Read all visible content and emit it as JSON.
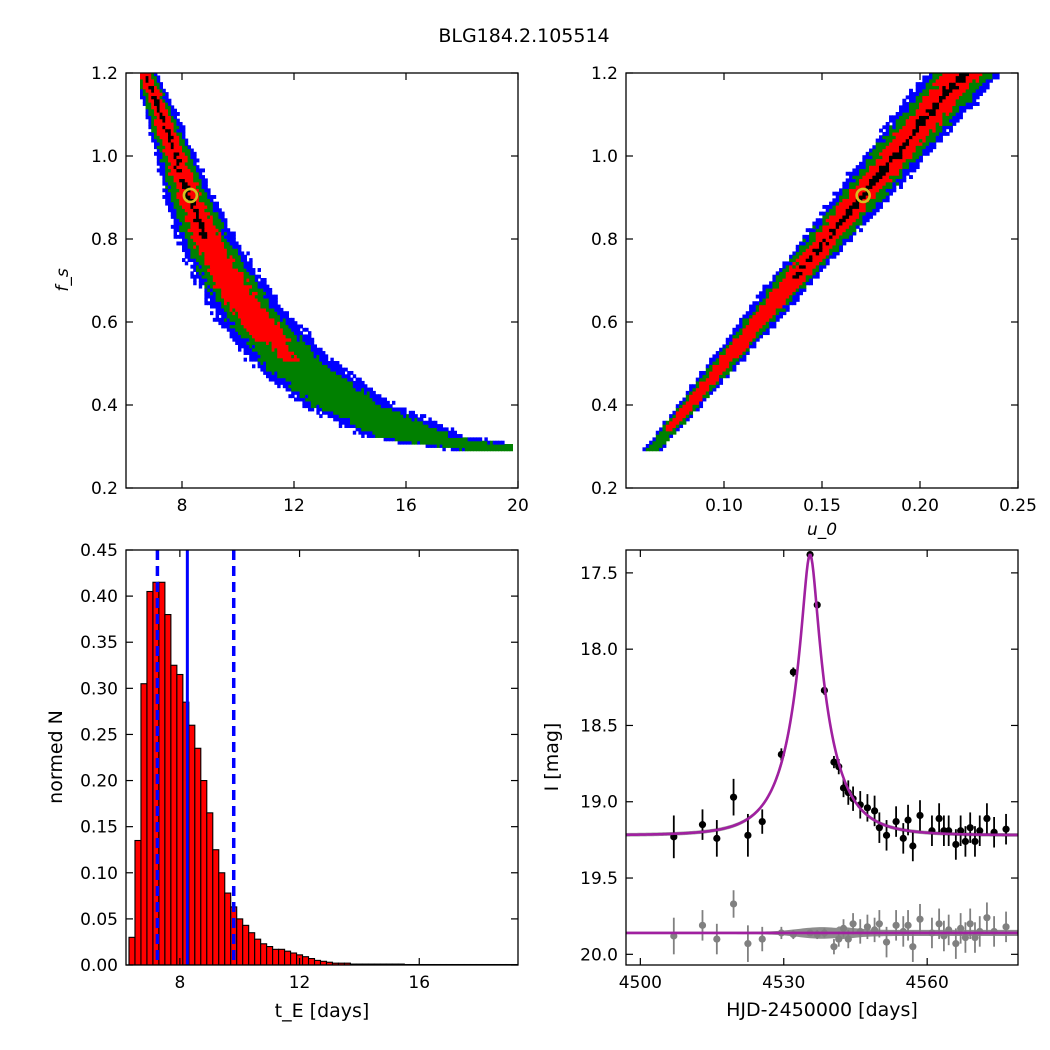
{
  "figure": {
    "title": "BLG184.2.105514"
  },
  "chart_data": [
    {
      "type": "heatmap",
      "panel": "top-left",
      "xlabel": "",
      "ylabel": "f_s",
      "xlim": [
        6,
        20
      ],
      "ylim": [
        0.2,
        1.2
      ],
      "xticks": [
        "8",
        "12",
        "16",
        "20"
      ],
      "yticks": [
        "0.2",
        "0.4",
        "0.6",
        "0.8",
        "1.0",
        "1.2"
      ],
      "colors": {
        "outer": "#0000ff",
        "middle": "#008000",
        "inner": "#ff0000",
        "core": "#000000"
      },
      "marker": {
        "x": 8.3,
        "y": 0.905,
        "color": "#d4c020"
      },
      "ridge": [
        [
          6.6,
          1.2
        ],
        [
          7.2,
          1.1
        ],
        [
          7.7,
          1.0
        ],
        [
          8.2,
          0.9
        ],
        [
          8.8,
          0.8
        ],
        [
          9.6,
          0.7
        ],
        [
          10.6,
          0.6
        ],
        [
          11.9,
          0.5
        ],
        [
          13.8,
          0.4
        ],
        [
          16.3,
          0.32
        ],
        [
          19.2,
          0.29
        ]
      ]
    },
    {
      "type": "heatmap",
      "panel": "top-right",
      "xlabel": "u_0",
      "ylabel": "",
      "xlim": [
        0.05,
        0.25
      ],
      "ylim": [
        0.2,
        1.2
      ],
      "xticks": [
        "0.10",
        "0.15",
        "0.20",
        "0.25"
      ],
      "yticks": [
        "0.2",
        "0.4",
        "0.6",
        "0.8",
        "1.0",
        "1.2"
      ],
      "colors": {
        "outer": "#0000ff",
        "middle": "#008000",
        "inner": "#ff0000",
        "core": "#000000"
      },
      "marker": {
        "x": 0.171,
        "y": 0.905,
        "color": "#d4c020"
      },
      "ridge": [
        [
          0.063,
          0.29
        ],
        [
          0.222,
          1.2
        ]
      ]
    },
    {
      "type": "bar",
      "panel": "bottom-left",
      "xlabel": "t_E [days]",
      "ylabel": "normed N",
      "xlim": [
        6.2,
        19.3
      ],
      "ylim": [
        0,
        0.45
      ],
      "xticks": [
        "8",
        "12",
        "16"
      ],
      "yticks": [
        "0.00",
        "0.05",
        "0.10",
        "0.15",
        "0.20",
        "0.25",
        "0.30",
        "0.35",
        "0.40",
        "0.45"
      ],
      "bin_start": 6.3,
      "bin_width": 0.2,
      "values": [
        0.03,
        0.135,
        0.305,
        0.405,
        0.415,
        0.415,
        0.38,
        0.325,
        0.315,
        0.285,
        0.26,
        0.235,
        0.2,
        0.165,
        0.125,
        0.1,
        0.078,
        0.063,
        0.05,
        0.043,
        0.035,
        0.028,
        0.023,
        0.02,
        0.017,
        0.017,
        0.015,
        0.013,
        0.011,
        0.009,
        0.007,
        0.005,
        0.004,
        0.003,
        0.002,
        0.002,
        0.002,
        0.001,
        0.001,
        0.001,
        0.001,
        0.001,
        0.001,
        0.001,
        0.001,
        0.001,
        0.0005,
        0.0005,
        0.0005,
        0.0005,
        0.0005,
        0.0005,
        0.0005,
        0.0005,
        0.0005,
        0.0005,
        0.0005,
        0.0005,
        0.0005,
        0.0005,
        0.0005,
        0.0005,
        0.0005,
        0.0005,
        0.0005
      ],
      "bar_color": "#ff0000",
      "median": 8.25,
      "interval": [
        7.25,
        9.8
      ],
      "line_color": "#0000ff"
    },
    {
      "type": "scatter",
      "panel": "bottom-right",
      "xlabel": "HJD-2450000 [days]",
      "ylabel": "I [mag]",
      "xlim": [
        4497,
        4579
      ],
      "ylim": [
        20.07,
        17.35
      ],
      "xticks": [
        "4500",
        "4530",
        "4560"
      ],
      "yticks": [
        "17.5",
        "18.0",
        "18.5",
        "19.0",
        "19.5",
        "20.0"
      ],
      "model": {
        "t0": 4535.5,
        "tE": 8.25,
        "u0": 0.171,
        "fs": 0.905,
        "base": 19.22,
        "color": "#a020a0"
      },
      "series": [
        {
          "color": "#000000",
          "points": [
            [
              4507.0,
              19.23,
              0.14
            ],
            [
              4513.0,
              19.15,
              0.1
            ],
            [
              4516.0,
              19.24,
              0.12
            ],
            [
              4519.5,
              18.97,
              0.12
            ],
            [
              4522.5,
              19.22,
              0.14
            ],
            [
              4525.5,
              19.13,
              0.08
            ],
            [
              4529.5,
              18.69,
              0.04
            ],
            [
              4532.0,
              18.15,
              0.03
            ],
            [
              4535.5,
              17.38,
              0.02
            ],
            [
              4537.0,
              17.71,
              0.02
            ],
            [
              4538.5,
              18.27,
              0.03
            ],
            [
              4540.5,
              18.74,
              0.04
            ],
            [
              4541.5,
              18.77,
              0.05
            ],
            [
              4542.5,
              18.91,
              0.06
            ],
            [
              4543.5,
              18.94,
              0.08
            ],
            [
              4544.5,
              18.98,
              0.08
            ],
            [
              4546.0,
              19.02,
              0.09
            ],
            [
              4547.5,
              19.04,
              0.09
            ],
            [
              4549.0,
              19.06,
              0.1
            ],
            [
              4550.0,
              19.17,
              0.1
            ],
            [
              4551.5,
              19.22,
              0.1
            ],
            [
              4553.5,
              19.13,
              0.1
            ],
            [
              4555.0,
              19.24,
              0.1
            ],
            [
              4556.0,
              19.12,
              0.1
            ],
            [
              4557.0,
              19.29,
              0.1
            ],
            [
              4558.5,
              19.09,
              0.1
            ],
            [
              4561.0,
              19.19,
              0.1
            ],
            [
              4562.5,
              19.11,
              0.1
            ],
            [
              4563.5,
              19.19,
              0.1
            ],
            [
              4564.5,
              19.19,
              0.1
            ],
            [
              4566.0,
              19.28,
              0.1
            ],
            [
              4567.0,
              19.19,
              0.1
            ],
            [
              4568.0,
              19.26,
              0.1
            ],
            [
              4569.0,
              19.17,
              0.1
            ],
            [
              4570.0,
              19.26,
              0.1
            ],
            [
              4571.0,
              19.19,
              0.1
            ],
            [
              4572.5,
              19.11,
              0.1
            ],
            [
              4574.0,
              19.2,
              0.1
            ],
            [
              4576.5,
              19.18,
              0.1
            ]
          ]
        },
        {
          "color": "#808080",
          "points": [
            [
              4507.0,
              19.88,
              0.12
            ],
            [
              4513.0,
              19.81,
              0.1
            ],
            [
              4516.0,
              19.9,
              0.1
            ],
            [
              4519.5,
              19.67,
              0.09
            ],
            [
              4522.5,
              19.93,
              0.12
            ],
            [
              4525.5,
              19.9,
              0.08
            ],
            [
              4529.5,
              19.86,
              0.04
            ],
            [
              4532.0,
              19.87,
              0.03
            ],
            [
              4535.5,
              19.86,
              0.02
            ],
            [
              4537.0,
              19.87,
              0.03
            ],
            [
              4538.5,
              19.86,
              0.03
            ],
            [
              4540.5,
              19.95,
              0.05
            ],
            [
              4541.5,
              19.9,
              0.05
            ],
            [
              4542.5,
              19.83,
              0.06
            ],
            [
              4543.5,
              19.9,
              0.06
            ],
            [
              4544.5,
              19.8,
              0.07
            ],
            [
              4546.0,
              19.85,
              0.08
            ],
            [
              4547.5,
              19.82,
              0.08
            ],
            [
              4549.0,
              19.84,
              0.08
            ],
            [
              4550.0,
              19.8,
              0.09
            ],
            [
              4551.5,
              19.92,
              0.1
            ],
            [
              4553.5,
              19.81,
              0.1
            ],
            [
              4555.0,
              19.85,
              0.1
            ],
            [
              4556.0,
              19.81,
              0.1
            ],
            [
              4557.0,
              19.95,
              0.1
            ],
            [
              4558.5,
              19.77,
              0.1
            ],
            [
              4561.0,
              19.86,
              0.1
            ],
            [
              4562.5,
              19.8,
              0.1
            ],
            [
              4563.5,
              19.88,
              0.1
            ],
            [
              4564.5,
              19.84,
              0.1
            ],
            [
              4566.0,
              19.93,
              0.1
            ],
            [
              4567.0,
              19.83,
              0.1
            ],
            [
              4568.0,
              19.89,
              0.1
            ],
            [
              4569.0,
              19.8,
              0.1
            ],
            [
              4570.0,
              19.89,
              0.1
            ],
            [
              4571.0,
              19.85,
              0.1
            ],
            [
              4572.5,
              19.76,
              0.1
            ],
            [
              4574.0,
              19.85,
              0.1
            ],
            [
              4576.5,
              19.82,
              0.1
            ]
          ]
        }
      ]
    }
  ]
}
